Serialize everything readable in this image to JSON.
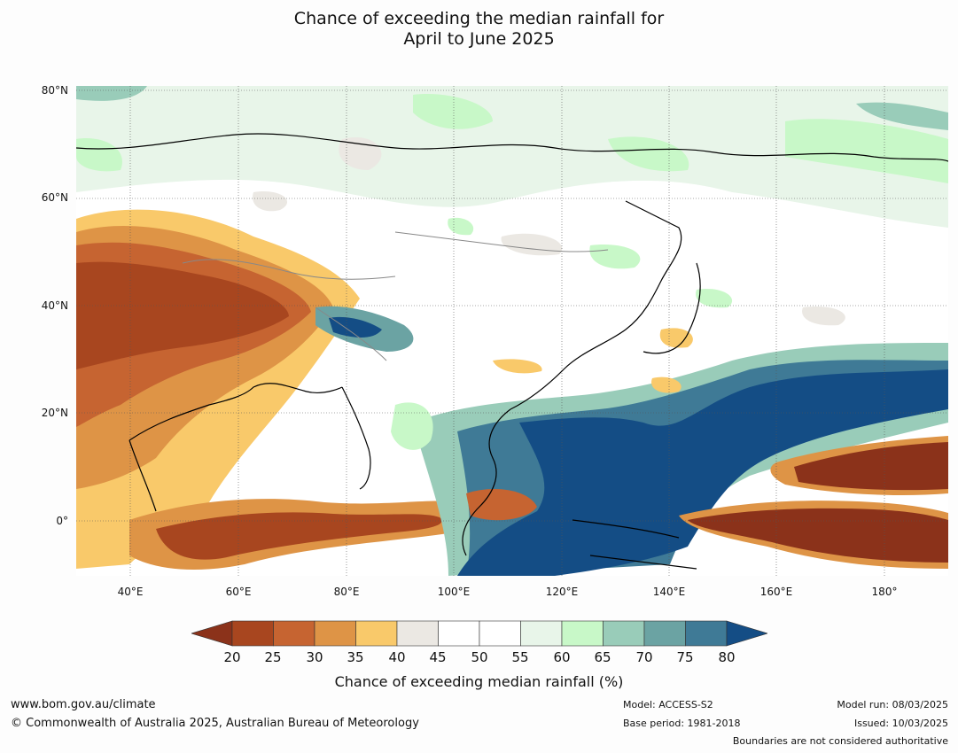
{
  "title": {
    "line1": "Chance of exceeding the median rainfall for",
    "line2": "April to June 2025"
  },
  "map": {
    "lat_labels": [
      "80°N",
      "60°N",
      "40°N",
      "20°N",
      "0°"
    ],
    "lon_labels": [
      "40°E",
      "60°E",
      "80°E",
      "100°E",
      "120°E",
      "140°E",
      "160°E",
      "180°"
    ],
    "colors": {
      "lt20": "#8b321a",
      "20_25": "#a8461f",
      "25_30": "#c66431",
      "30_35": "#de9446",
      "35_40": "#f9c96a",
      "40_45": "#ebe8e3",
      "45_50": "#ffffff",
      "50_55": "#ffffff",
      "55_60": "#e8f5e9",
      "60_65": "#c8f8c8",
      "65_70": "#99ccb9",
      "70_75": "#6ba3a3",
      "75_80": "#3f7a96",
      "gt80": "#144d85"
    }
  },
  "colorbar": {
    "ticks": [
      "20",
      "25",
      "30",
      "35",
      "40",
      "45",
      "50",
      "55",
      "60",
      "65",
      "70",
      "75",
      "80"
    ],
    "label": "Chance of exceeding median rainfall (%)"
  },
  "footer": {
    "website": "www.bom.gov.au/climate",
    "copyright": "© Commonwealth of Australia 2025, Australian Bureau of Meteorology",
    "model": "Model: ACCESS-S2",
    "base_period": "Base period: 1981-2018",
    "model_run": "Model run: 08/03/2025",
    "issued": "Issued: 10/03/2025",
    "boundaries": "Boundaries are not considered authoritative"
  }
}
